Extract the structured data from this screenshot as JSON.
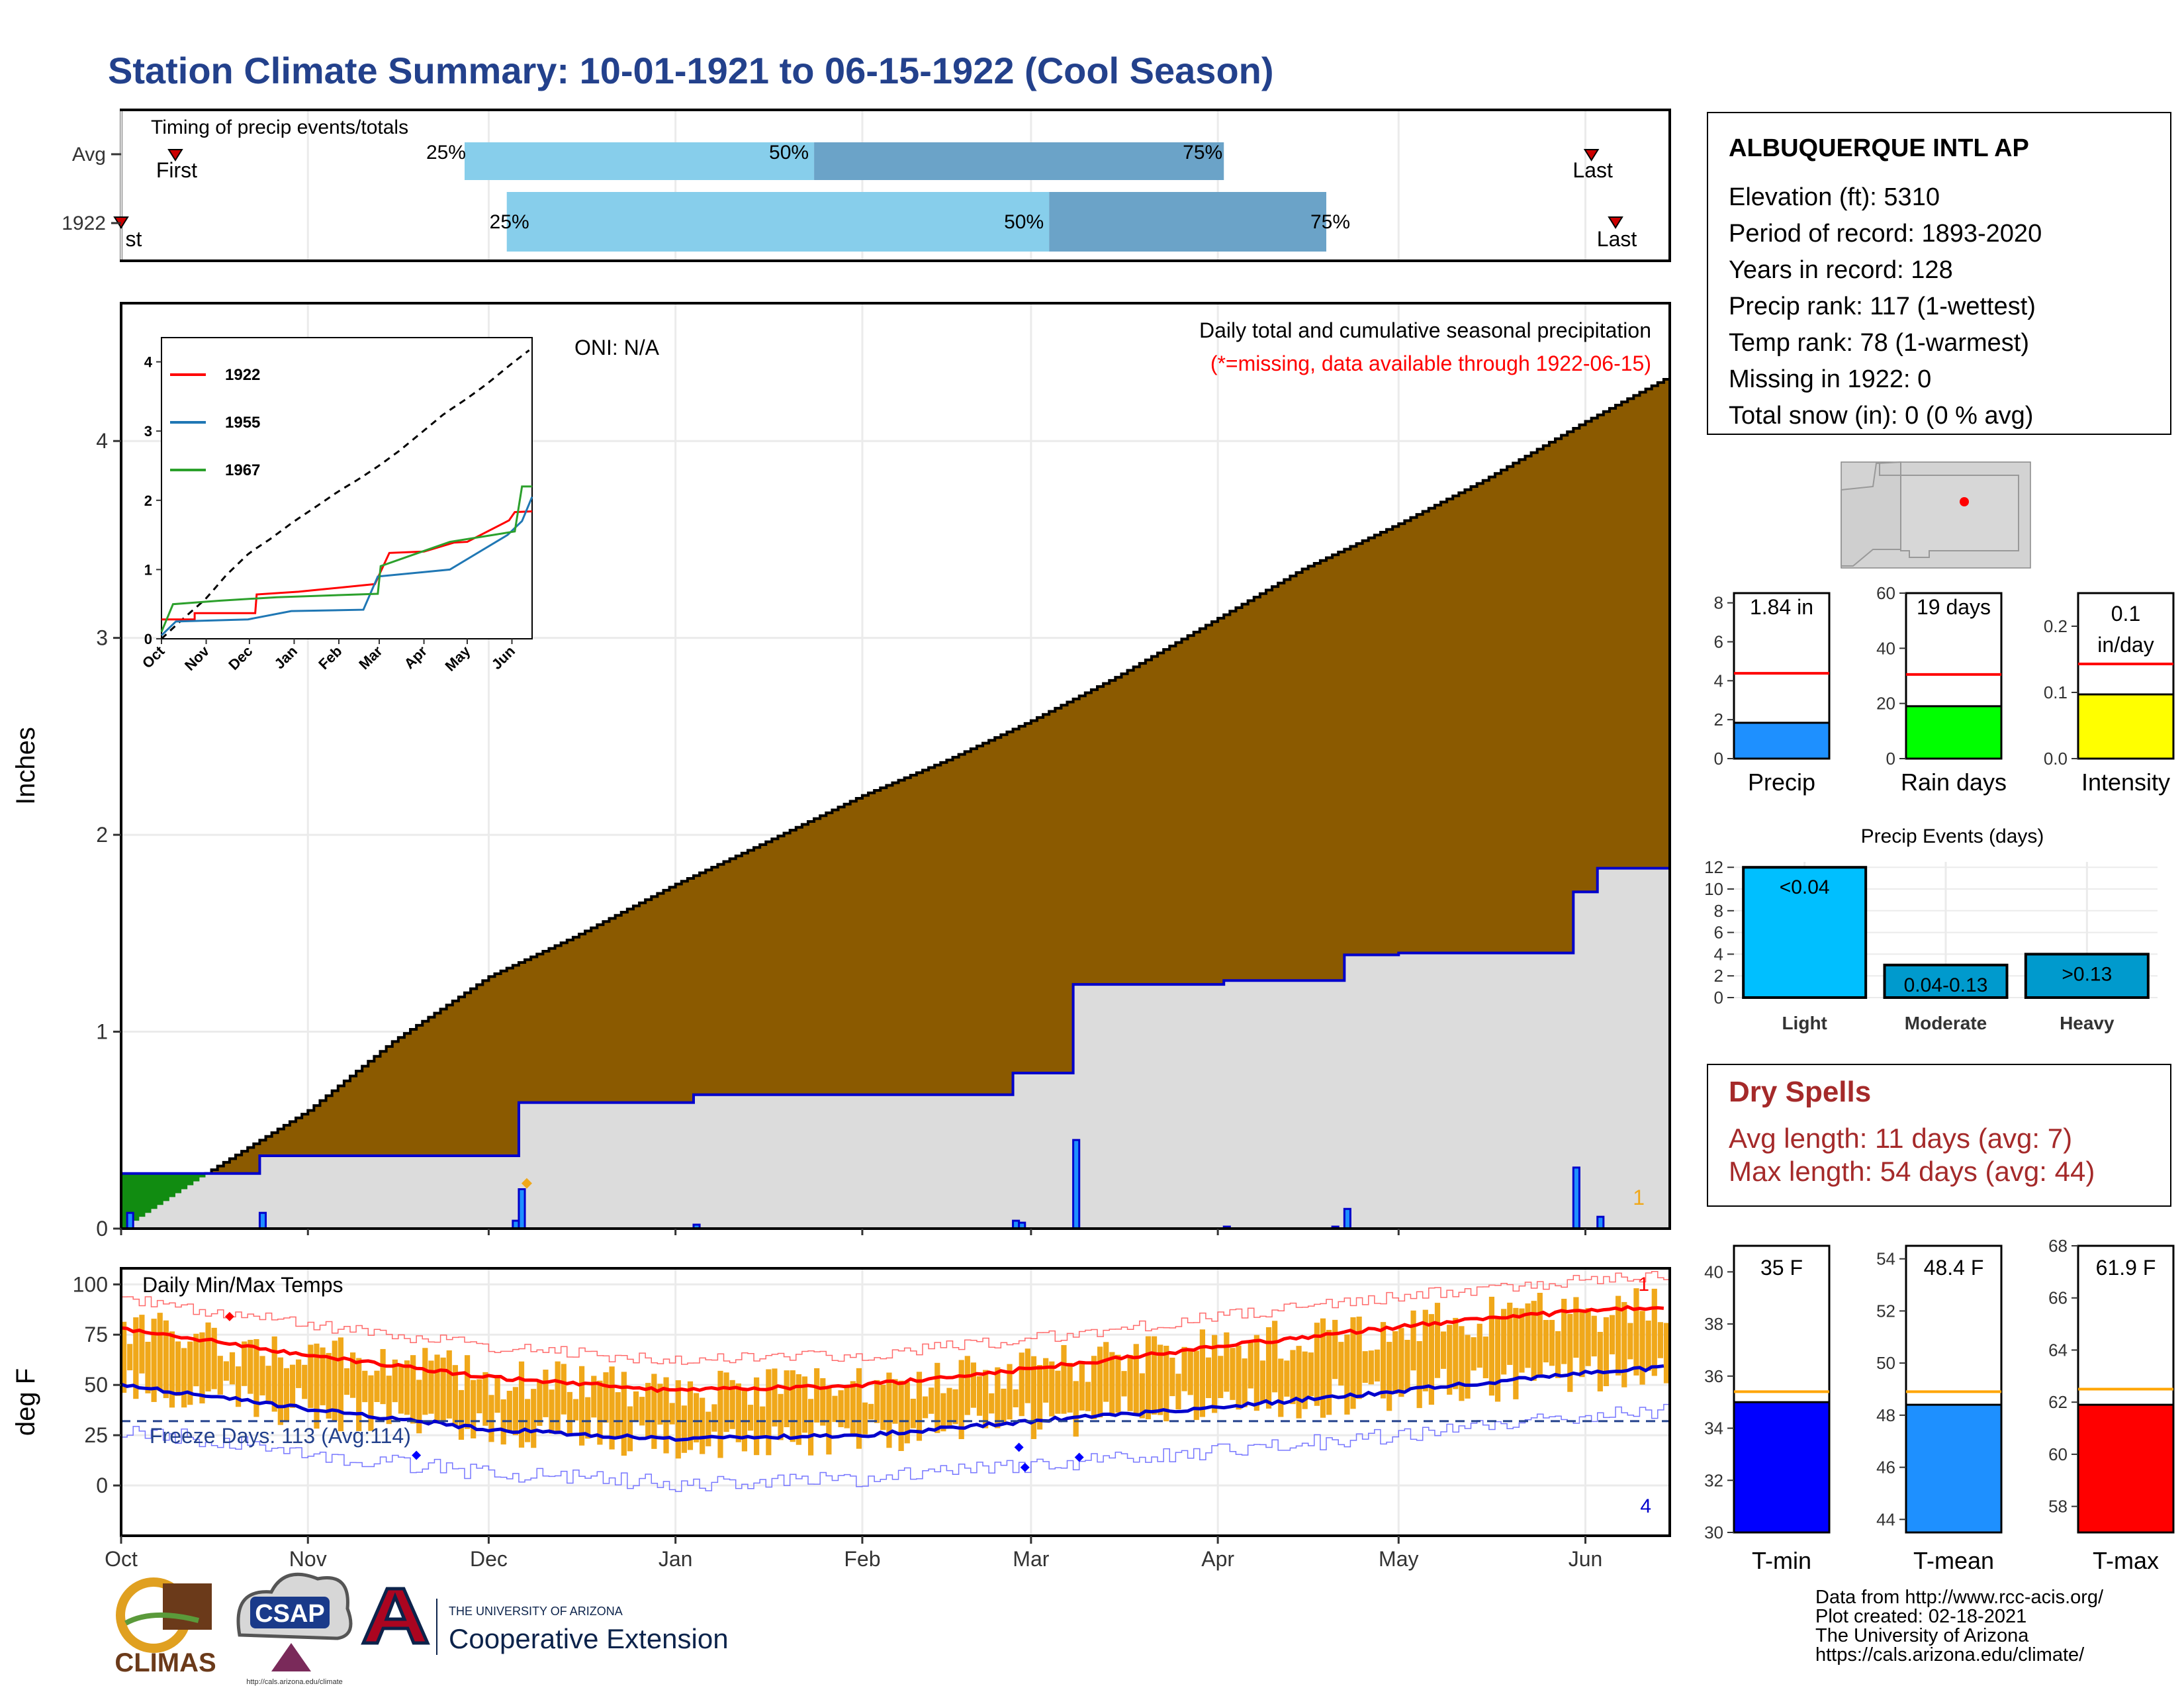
{
  "title": "Station Climate Summary: 10-01-1921 to 06-15-1922 (Cool Season)",
  "colors": {
    "title": "#23418c",
    "cum_avg_fill": "#8b5a00",
    "obs_line": "#0000cc",
    "obs_fill": "#dcdcdc",
    "early_fill": "#118c11",
    "quartile_light": "#87ceeb",
    "quartile_dark": "#6ba3c8",
    "temp_bar": "#f0a81a",
    "avg_max": "#ff0000",
    "avg_min": "#0000cc",
    "dry_spell_text": "#a52a2a",
    "precip_bar": "#1e90ff",
    "raindays_bar": "#00ff00",
    "intensity_bar": "#ffff00",
    "event_bar": "#00bfff",
    "tmin_bar": "#0000ff",
    "tmean_bar": "#1e90ff",
    "tmax_bar": "#ff0000",
    "avg_ref_line": "#ff0000",
    "temp_ref_line": "#ffa500"
  },
  "timing_panel": {
    "label": "Timing of precip events/totals",
    "rows": [
      {
        "name": "Avg",
        "first_label": "First",
        "last_label": "Last",
        "first_date": "1921-10-10",
        "last_date": "1922-06-02",
        "q25": "1921-11-27",
        "q50": "1922-01-24",
        "q75": "1922-04-02"
      },
      {
        "name": "1922",
        "first_label": "First",
        "last_label": "Last",
        "first_date": "1921-10-01",
        "last_date": "1922-06-06",
        "q25": "1921-12-04",
        "q50": "1922-03-04",
        "q75": "1922-04-19"
      }
    ],
    "q_labels": [
      "25%",
      "50%",
      "75%"
    ]
  },
  "precip_panel": {
    "y_label": "Inches",
    "y_ticks": [
      0,
      1,
      2,
      3,
      4
    ],
    "x_ticks": [
      "Oct",
      "Nov",
      "Dec",
      "Jan",
      "Feb",
      "Mar",
      "Apr",
      "May",
      "Jun"
    ],
    "oni": "ONI: N/A",
    "subtitle": "Daily total and cumulative seasonal precipitation",
    "missing_note": "(*=missing, data available through 1922-06-15)",
    "count_label": "1"
  },
  "inset": {
    "y_ticks": [
      "0",
      "1",
      "2",
      "3",
      "4"
    ],
    "x_ticks": [
      "Oct",
      "Nov",
      "Dec",
      "Jan",
      "Feb",
      "Mar",
      "Apr",
      "May",
      "Jun"
    ],
    "series": [
      {
        "name": "1922",
        "color": "#ff0000"
      },
      {
        "name": "1955",
        "color": "#1f77b4"
      },
      {
        "name": "1967",
        "color": "#2ca02c"
      }
    ]
  },
  "temp_panel": {
    "y_label": "deg F",
    "title": "Daily Min/Max Temps",
    "freeze_label": "Freeze Days: 113 (Avg:114)",
    "y_ticks": [
      0,
      25,
      50,
      75,
      100
    ],
    "count_top": "1",
    "count_bottom": "4"
  },
  "station": {
    "name": "ALBUQUERQUE INTL AP",
    "lines": [
      "Elevation (ft): 5310",
      "Period of record: 1893-2020",
      "Years in record: 128",
      "Precip rank: 117 (1-wettest)",
      "Temp rank: 78 (1-warmest)",
      "Missing in 1922: 0",
      "Total snow (in): 0 (0 % avg)"
    ]
  },
  "mini_bars": [
    {
      "name": "Precip",
      "label": "1.84 in",
      "value": 1.84,
      "avg": 4.38,
      "ymax": 8.5,
      "ticks": [
        "0",
        "2",
        "4",
        "6",
        "8"
      ]
    },
    {
      "name": "Rain days",
      "label": "19 days",
      "value": 19,
      "avg": 30.5,
      "ymax": 60,
      "ticks": [
        "0",
        "20",
        "40",
        "60"
      ]
    },
    {
      "name": "Intensity",
      "label_line1": "0.1",
      "label_line2": "in/day",
      "value": 0.097,
      "avg": 0.143,
      "ymax": 0.25,
      "ticks": [
        "0.0",
        "0.1",
        "0.2"
      ]
    }
  ],
  "events": {
    "title": "Precip Events (days)",
    "ticks": [
      "0",
      "2",
      "4",
      "6",
      "8",
      "10",
      "12"
    ],
    "bars": [
      {
        "name": "Light",
        "label": "<0.04",
        "value": 12
      },
      {
        "name": "Moderate",
        "label": "0.04-0.13",
        "value": 3
      },
      {
        "name": "Heavy",
        "label": ">0.13",
        "value": 4
      }
    ]
  },
  "dry_spells": {
    "title": "Dry Spells",
    "avg_line": "Avg length: 11 days (avg: 7)",
    "max_line": "Max length: 54 days (avg: 44)"
  },
  "temp_bars": [
    {
      "name": "T-min",
      "label": "35 F",
      "value": 35.0,
      "avg": 35.4,
      "ymin": 30,
      "ymax": 41,
      "ticks": [
        "30",
        "32",
        "34",
        "36",
        "38",
        "40"
      ]
    },
    {
      "name": "T-mean",
      "label": "48.4 F",
      "value": 48.4,
      "avg": 48.9,
      "ymin": 43.5,
      "ymax": 54.5,
      "ticks": [
        "44",
        "46",
        "48",
        "50",
        "52",
        "54"
      ]
    },
    {
      "name": "T-max",
      "label": "61.9 F",
      "value": 61.9,
      "avg": 62.5,
      "ymin": 57,
      "ymax": 68,
      "ticks": [
        "58",
        "60",
        "62",
        "64",
        "66",
        "68"
      ]
    }
  ],
  "footer": {
    "lines": [
      "Data from http://www.rcc-acis.org/",
      "Plot created: 02-18-2021",
      "The University of Arizona",
      "https://cals.arizona.edu/climate/"
    ],
    "climas": "CLIMAS",
    "csap": "CSAP",
    "csap_url": "http://cals.arizona.edu/climate",
    "ua_small": "THE UNIVERSITY OF ARIZONA",
    "ua_big": "Cooperative Extension"
  },
  "chart_data": {
    "type": "area",
    "title": "Station Climate Summary: 10-01-1921 to 06-15-1922 (Cool Season)",
    "xlabel": "",
    "ylabel": "Inches",
    "ylim": [
      0,
      4.7
    ],
    "x_range": [
      "1921-10-01",
      "1922-06-15"
    ],
    "series": [
      {
        "name": "avg cumulative",
        "x": [
          "1921-10-01",
          "1921-10-15",
          "1921-11-01",
          "1921-11-15",
          "1921-12-01",
          "1921-12-15",
          "1922-01-01",
          "1922-01-15",
          "1922-02-01",
          "1922-02-15",
          "1922-03-01",
          "1922-03-15",
          "1922-04-01",
          "1922-04-15",
          "1922-05-01",
          "1922-05-15",
          "1922-06-01",
          "1922-06-15"
        ],
        "values": [
          0.0,
          0.28,
          0.6,
          0.95,
          1.28,
          1.48,
          1.75,
          1.95,
          2.2,
          2.38,
          2.58,
          2.8,
          3.1,
          3.35,
          3.58,
          3.8,
          4.1,
          4.33
        ]
      },
      {
        "name": "1922 cumulative",
        "x": [
          "1921-10-01",
          "1921-10-24",
          "1921-12-05",
          "1921-12-06",
          "1922-01-04",
          "1922-02-26",
          "1922-03-08",
          "1922-04-02",
          "1922-04-22",
          "1922-05-01",
          "1922-05-30",
          "1922-06-03",
          "1922-06-15"
        ],
        "values": [
          0.28,
          0.37,
          0.37,
          0.64,
          0.68,
          0.79,
          1.24,
          1.26,
          1.39,
          1.4,
          1.71,
          1.83,
          1.84
        ]
      },
      {
        "name": "1922 daily precip",
        "x": [
          "1921-10-02",
          "1921-10-24",
          "1921-12-05",
          "1921-12-06",
          "1922-01-04",
          "1922-02-26",
          "1922-02-27",
          "1922-03-08",
          "1922-04-02",
          "1922-04-20",
          "1922-04-22",
          "1922-05-30",
          "1922-06-03"
        ],
        "values": [
          0.08,
          0.08,
          0.04,
          0.2,
          0.02,
          0.04,
          0.03,
          0.45,
          0.01,
          0.01,
          0.1,
          0.31,
          0.06
        ]
      },
      {
        "name": "avg max temp",
        "x": [
          "1921-10-01",
          "1921-11-01",
          "1921-12-01",
          "1922-01-01",
          "1922-02-01",
          "1922-03-01",
          "1922-04-01",
          "1922-05-01",
          "1922-06-01",
          "1922-06-15"
        ],
        "values": [
          78,
          65,
          54,
          47,
          50,
          58,
          69,
          79,
          87,
          89
        ]
      },
      {
        "name": "avg min temp",
        "x": [
          "1921-10-01",
          "1921-11-01",
          "1921-12-01",
          "1922-01-01",
          "1922-02-01",
          "1922-03-01",
          "1922-04-01",
          "1922-05-01",
          "1922-06-01",
          "1922-06-15"
        ],
        "values": [
          50,
          38,
          28,
          23,
          25,
          32,
          39,
          47,
          56,
          59
        ]
      }
    ]
  }
}
